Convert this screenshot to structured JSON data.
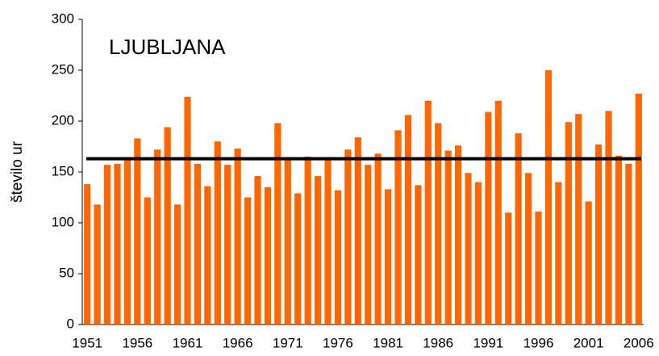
{
  "chart_data": {
    "type": "bar",
    "title": "LJUBLJANA",
    "y_label": "število ur",
    "categories": [
      "1951",
      null,
      null,
      null,
      null,
      "1956",
      null,
      null,
      null,
      null,
      "1961",
      null,
      null,
      null,
      null,
      "1966",
      null,
      null,
      null,
      null,
      "1971",
      null,
      null,
      null,
      null,
      "1976",
      null,
      null,
      null,
      null,
      "1981",
      null,
      null,
      null,
      null,
      "1986",
      null,
      null,
      null,
      null,
      "1991",
      null,
      null,
      null,
      null,
      "1996",
      null,
      null,
      null,
      null,
      "2001",
      null,
      null,
      null,
      null,
      "2006"
    ],
    "values": [
      138,
      118,
      157,
      158,
      163,
      183,
      125,
      172,
      194,
      118,
      224,
      158,
      136,
      180,
      157,
      173,
      125,
      146,
      135,
      198,
      163,
      129,
      165,
      146,
      163,
      132,
      172,
      184,
      157,
      168,
      133,
      191,
      206,
      137,
      220,
      198,
      171,
      176,
      149,
      140,
      209,
      220,
      110,
      188,
      149,
      111,
      250,
      140,
      199,
      207,
      121,
      177,
      210,
      166,
      158,
      227
    ],
    "color": "#ff6600",
    "reference_line": 163,
    "reference_color": "#000000",
    "ylim": [
      0,
      300
    ],
    "yticks": [
      0,
      50,
      100,
      150,
      200,
      250,
      300
    ],
    "grid": false
  }
}
